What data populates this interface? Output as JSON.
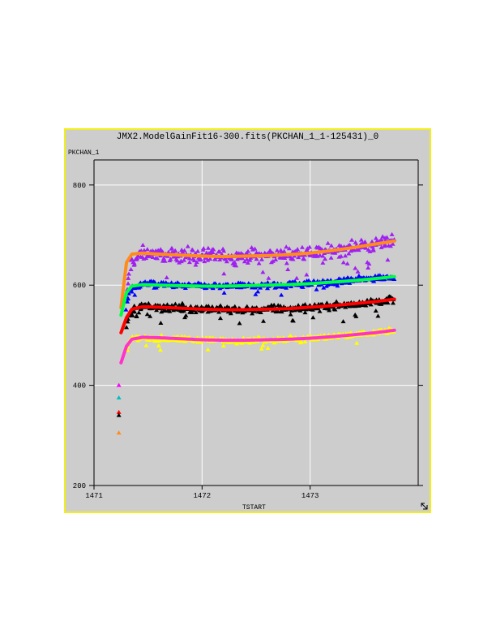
{
  "window": {
    "title": "JMX2.ModelGainFit16-300.fits(PKCHAN_1_1-125431)_0"
  },
  "chart_data": {
    "type": "scatter",
    "title": "JMX2.ModelGainFit16-300.fits(PKCHAN_1_1-125431)_0",
    "xlabel": "TSTART",
    "ylabel": "PKCHAN_1",
    "xlim": [
      1471,
      1474
    ],
    "ylim": [
      200,
      850
    ],
    "x_ticks": [
      1471,
      1472,
      1473
    ],
    "x_tick_labels": [
      "1471",
      "1472",
      "1473"
    ],
    "y_ticks": [
      200,
      400,
      600,
      800
    ],
    "y_tick_labels": [
      "200",
      "400",
      "600",
      "800"
    ],
    "grid": true,
    "legend": "none",
    "x_start": 1471.25,
    "x_end": 1473.78,
    "series": [
      {
        "marker": "triangle",
        "color": "#a020f0",
        "x": [
          1471.28,
          1471.33,
          1471.45,
          1471.6,
          1471.8,
          1472.0,
          1472.2,
          1472.4,
          1472.6,
          1472.8,
          1473.0,
          1473.2,
          1473.4,
          1473.6,
          1473.75
        ],
        "values": [
          520,
          640,
          665,
          662,
          660,
          658,
          657,
          658,
          659,
          661,
          663,
          668,
          675,
          683,
          690
        ]
      },
      {
        "marker": "triangle",
        "color": "#0000ff",
        "x": [
          1471.28,
          1471.33,
          1471.45,
          1471.6,
          1471.8,
          1472.0,
          1472.2,
          1472.4,
          1472.6,
          1472.8,
          1473.0,
          1473.2,
          1473.4,
          1473.6,
          1473.75
        ],
        "values": [
          540,
          590,
          603,
          601,
          599,
          598,
          598,
          599,
          600,
          601,
          603,
          606,
          610,
          614,
          617
        ]
      },
      {
        "marker": "triangle",
        "color": "#000000",
        "x": [
          1471.28,
          1471.33,
          1471.45,
          1471.6,
          1471.8,
          1472.0,
          1472.2,
          1472.4,
          1472.6,
          1472.8,
          1473.0,
          1473.2,
          1473.4,
          1473.6,
          1473.75
        ],
        "values": [
          500,
          545,
          558,
          556,
          554,
          552,
          551,
          551,
          552,
          553,
          555,
          558,
          562,
          567,
          572
        ]
      },
      {
        "marker": "triangle",
        "color": "#ffff00",
        "x": [
          1471.28,
          1471.33,
          1471.45,
          1471.6,
          1471.8,
          1472.0,
          1472.2,
          1472.4,
          1472.6,
          1472.8,
          1473.0,
          1473.2,
          1473.4,
          1473.6,
          1473.75
        ],
        "values": [
          450,
          490,
          496,
          494,
          492,
          491,
          490,
          490,
          491,
          492,
          494,
          497,
          501,
          505,
          510
        ]
      },
      {
        "marker": "triangle",
        "color": "#ff00ff",
        "x": [
          1471.24,
          1471.24,
          1471.24
        ],
        "values": [
          400,
          380,
          345
        ]
      }
    ],
    "fit_curves": [
      {
        "color": "#ff8c1a",
        "x": [
          1471.25,
          1471.3,
          1471.35,
          1471.45,
          1471.6,
          1471.8,
          1472.0,
          1472.2,
          1472.4,
          1472.6,
          1472.8,
          1473.0,
          1473.2,
          1473.4,
          1473.6,
          1473.78
        ],
        "values": [
          555,
          645,
          662,
          664,
          662,
          660,
          658,
          657,
          658,
          659,
          661,
          664,
          669,
          675,
          682,
          688
        ]
      },
      {
        "color": "#00ff40",
        "x": [
          1471.25,
          1471.3,
          1471.35,
          1471.45,
          1471.6,
          1471.8,
          1472.0,
          1472.2,
          1472.4,
          1472.6,
          1472.8,
          1473.0,
          1473.2,
          1473.4,
          1473.6,
          1473.78
        ],
        "values": [
          540,
          585,
          598,
          601,
          600,
          599,
          598,
          598,
          599,
          600,
          601,
          603,
          606,
          609,
          613,
          617
        ]
      },
      {
        "color": "#ff0000",
        "x": [
          1471.25,
          1471.3,
          1471.35,
          1471.45,
          1471.6,
          1471.8,
          1472.0,
          1472.2,
          1472.4,
          1472.6,
          1472.8,
          1473.0,
          1473.2,
          1473.4,
          1473.6,
          1473.78
        ],
        "values": [
          505,
          535,
          552,
          557,
          556,
          554,
          552,
          551,
          551,
          552,
          553,
          556,
          559,
          563,
          567,
          572
        ]
      },
      {
        "color": "#ff33cc",
        "x": [
          1471.25,
          1471.3,
          1471.35,
          1471.45,
          1471.6,
          1471.8,
          1472.0,
          1472.2,
          1472.4,
          1472.6,
          1472.8,
          1473.0,
          1473.2,
          1473.4,
          1473.6,
          1473.78
        ],
        "values": [
          445,
          478,
          492,
          496,
          495,
          493,
          491,
          490,
          490,
          491,
          492,
          494,
          497,
          501,
          505,
          510
        ]
      }
    ],
    "initial_points": [
      {
        "x": 1471.23,
        "y": 400,
        "color": "#ff00ff"
      },
      {
        "x": 1471.23,
        "y": 375,
        "color": "#00bfbf"
      },
      {
        "x": 1471.23,
        "y": 346,
        "color": "#ff0000"
      },
      {
        "x": 1471.23,
        "y": 340,
        "color": "#000000"
      },
      {
        "x": 1471.23,
        "y": 305,
        "color": "#ff8c1a"
      }
    ]
  },
  "colors": {
    "window_border": "#f2ee1d",
    "plot_background": "#cdcdcd",
    "grid": "#ffffff"
  }
}
